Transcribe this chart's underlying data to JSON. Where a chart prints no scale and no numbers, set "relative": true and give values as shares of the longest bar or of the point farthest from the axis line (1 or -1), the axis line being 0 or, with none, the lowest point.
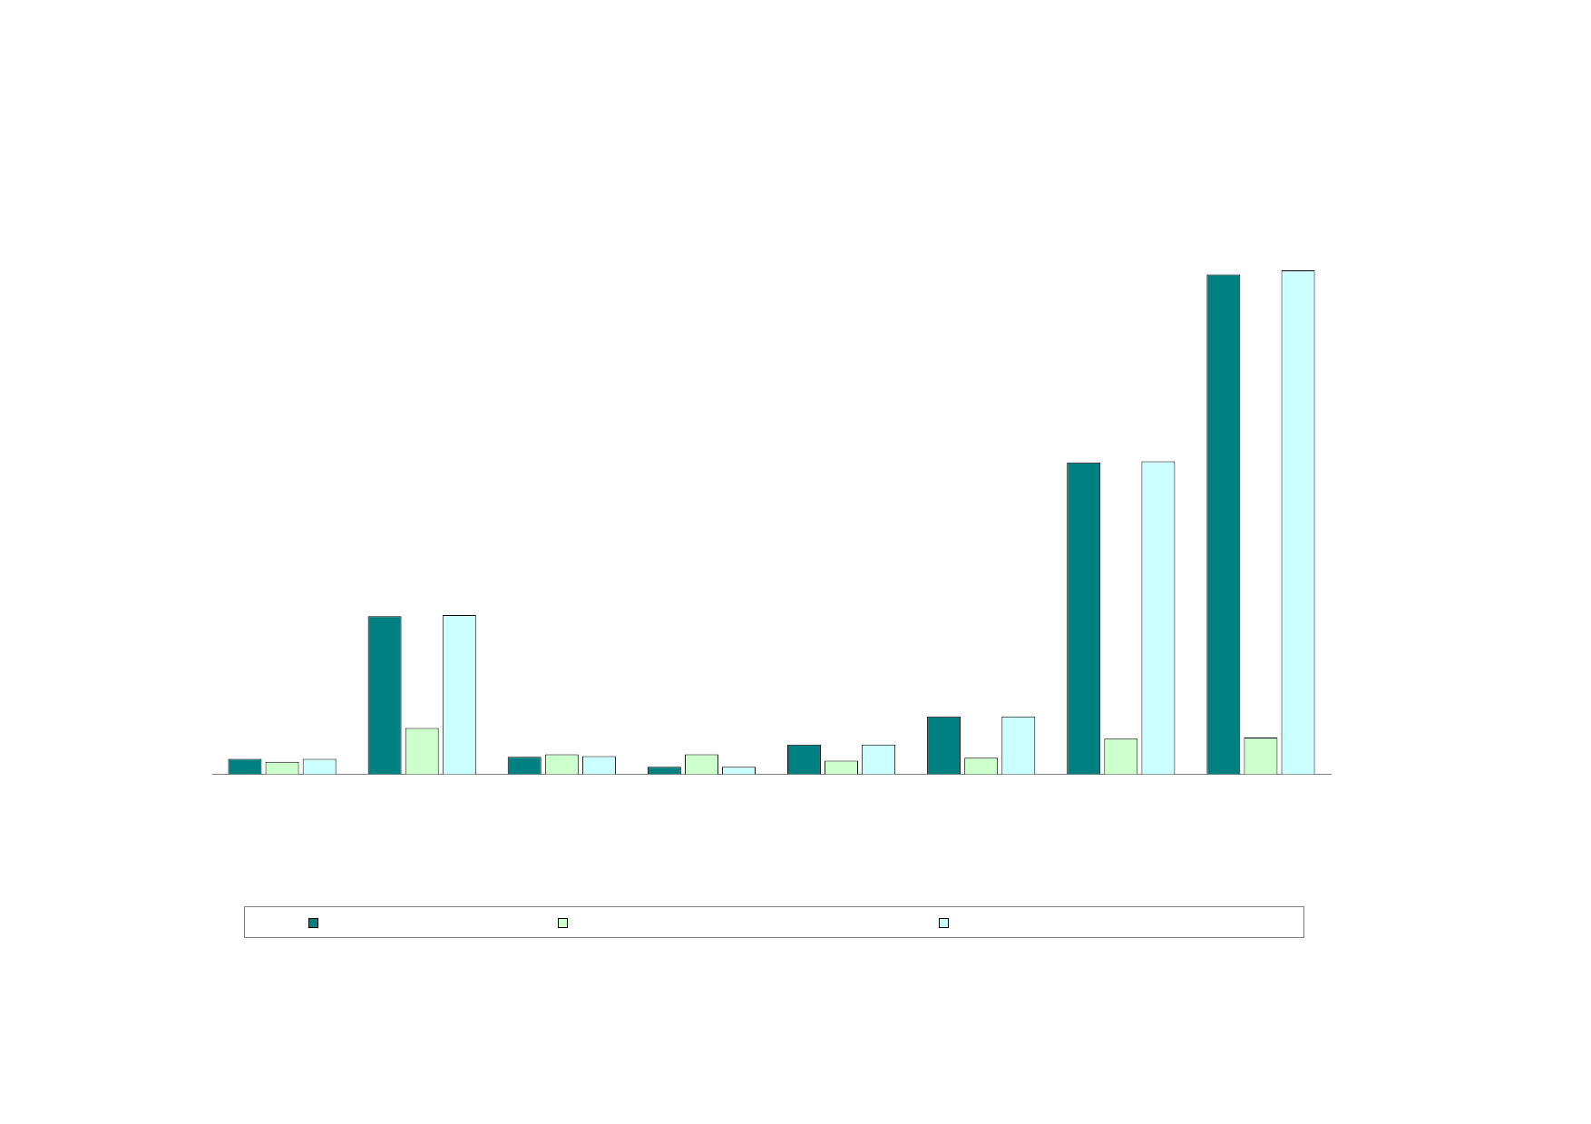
{
  "chart_data": {
    "type": "bar",
    "relative": true,
    "categories": [
      null,
      null,
      null,
      null,
      null,
      null,
      null,
      null
    ],
    "series": [
      {
        "color": "#008080",
        "values": [
          0.031,
          0.314,
          0.035,
          0.015,
          0.059,
          0.115,
          0.619,
          0.992
        ]
      },
      {
        "color": "#ccffcc",
        "values": [
          0.025,
          0.092,
          0.04,
          0.04,
          0.027,
          0.033,
          0.071,
          0.073
        ]
      },
      {
        "color": "#ccffff",
        "values": [
          0.031,
          0.316,
          0.036,
          0.015,
          0.059,
          0.115,
          0.621,
          1
        ]
      }
    ]
  }
}
